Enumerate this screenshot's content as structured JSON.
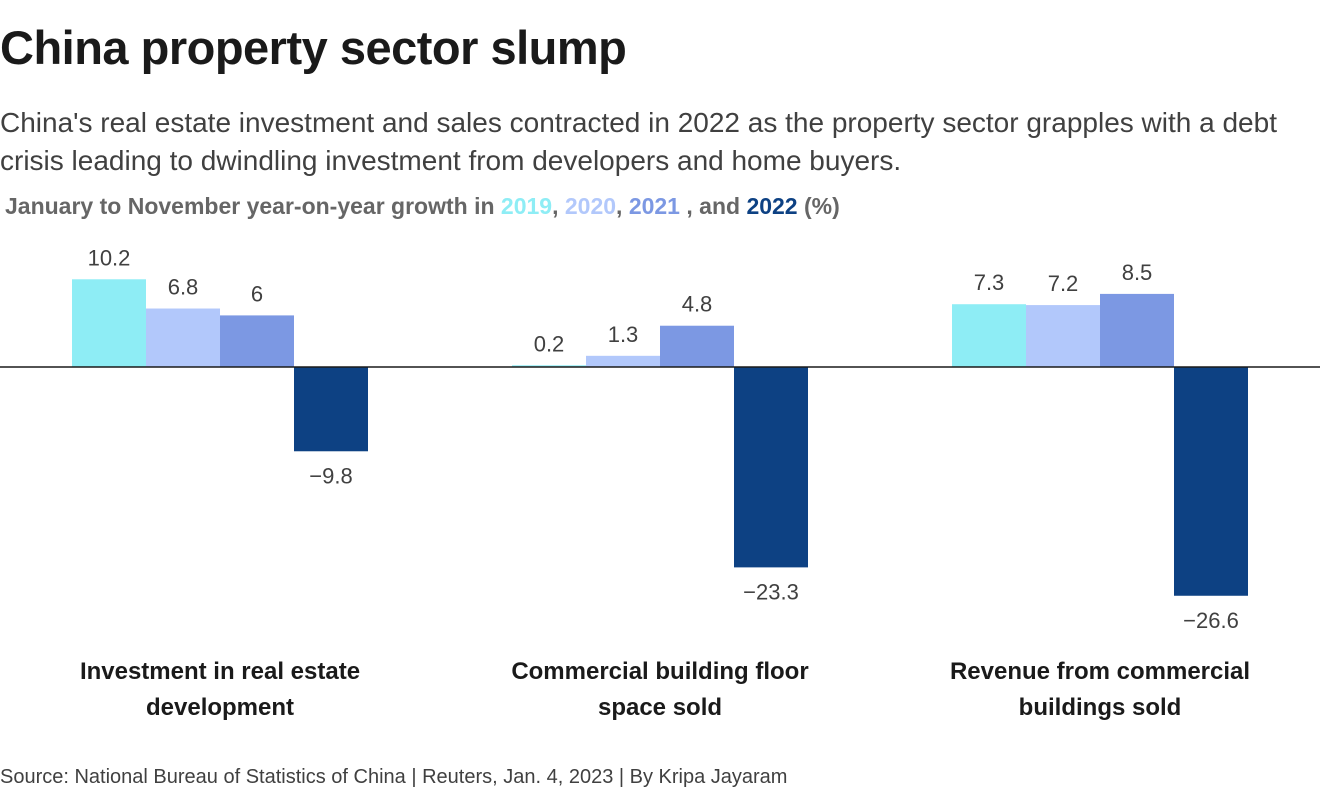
{
  "title": "China property sector slump",
  "subtitle": "China's real estate investment and sales contracted in 2022 as the property sector grapples with a debt crisis leading to dwindling investment from developers and home buyers.",
  "legend": {
    "prefix": "January to November year-on-year growth in ",
    "sep1": ", ",
    "sep2": ", ",
    "sep3": " , and ",
    "suffix": " (%)"
  },
  "source": "Source: National Bureau of Statistics of China | Reuters, Jan. 4, 2023 | By Kripa Jayaram",
  "colors": {
    "2019": "#8eedf5",
    "2020": "#b2c8fb",
    "2021": "#7c98e3",
    "2022": "#0d4183",
    "axis": "#1a1a1a"
  },
  "chart_data": {
    "type": "bar",
    "categories": [
      "Investment in real estate development",
      "Commercial building floor space sold",
      "Revenue from commercial buildings sold"
    ],
    "series": [
      {
        "name": "2019",
        "values": [
          10.2,
          0.2,
          7.3
        ],
        "labels": [
          "10.2",
          "0.2",
          "7.3"
        ]
      },
      {
        "name": "2020",
        "values": [
          6.8,
          1.3,
          7.2
        ],
        "labels": [
          "6.8",
          "1.3",
          "7.2"
        ]
      },
      {
        "name": "2021",
        "values": [
          6,
          4.8,
          8.5
        ],
        "labels": [
          "6",
          "4.8",
          "8.5"
        ]
      },
      {
        "name": "2022",
        "values": [
          -9.8,
          -23.3,
          -26.6
        ],
        "labels": [
          "−9.8",
          "−23.3",
          "−26.6"
        ]
      }
    ],
    "title": "China property sector slump",
    "xlabel": "",
    "ylabel": "",
    "grid": false,
    "legend": "top-left"
  }
}
